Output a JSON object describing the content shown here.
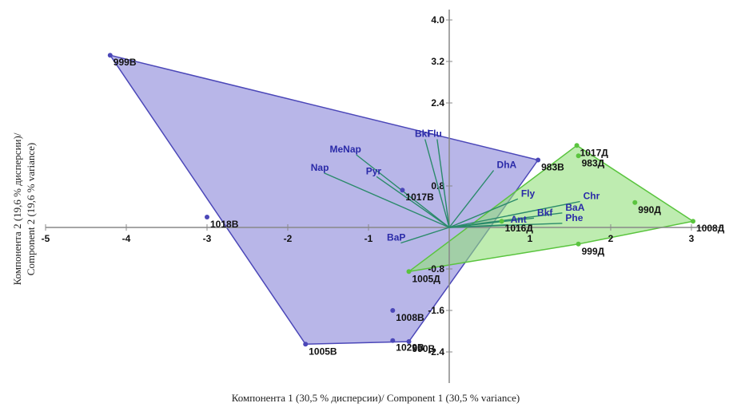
{
  "chart_data": {
    "type": "scatter",
    "title": "",
    "xlabel": "Компонента 1 (30,5 % дисперсии)/ Component 1 (30,5 % variance)",
    "ylabel_line1": "Компонента 2 (19,6 % дисперсии)/",
    "ylabel_line2": "Component 2 (19,6 % variance)",
    "xlim": [
      -5,
      3.4
    ],
    "ylim": [
      -3.0,
      4.2
    ],
    "x_ticks": [
      -5,
      -4,
      -3,
      -2,
      -1,
      1,
      2,
      3
    ],
    "y_ticks": [
      4.0,
      3.2,
      2.4,
      0.8,
      -0.8,
      -1.6,
      -2.4
    ],
    "grid": false,
    "colors": {
      "group_b": "#4b47b8",
      "group_b_fill": "#7d7ad6",
      "group_d": "#5ac43e",
      "group_d_fill": "#93df7c",
      "loading_line": "#2a8a6a",
      "axis": "#888888"
    },
    "series": [
      {
        "name": "",
        "group": "b",
        "points": [
          {
            "label": "999В",
            "x": -4.2,
            "y": 3.32
          },
          {
            "label": "1018В",
            "x": -3.0,
            "y": 0.2
          },
          {
            "label": "1005В",
            "x": -1.78,
            "y": -2.25
          },
          {
            "label": "1029В",
            "x": -0.7,
            "y": -2.18
          },
          {
            "label": "990В",
            "x": -0.5,
            "y": -2.2
          },
          {
            "label": "1008В",
            "x": -0.7,
            "y": -1.6
          },
          {
            "label": "1017В",
            "x": -0.58,
            "y": 0.72
          },
          {
            "label": "983В",
            "x": 1.1,
            "y": 1.3
          }
        ],
        "hull": [
          "999В",
          "983В",
          "990В",
          "1005В"
        ]
      },
      {
        "name": "",
        "group": "d",
        "points": [
          {
            "label": "1017Д",
            "x": 1.58,
            "y": 1.58
          },
          {
            "label": "983Д",
            "x": 1.6,
            "y": 1.38
          },
          {
            "label": "990Д",
            "x": 2.3,
            "y": 0.48
          },
          {
            "label": "1008Д",
            "x": 3.02,
            "y": 0.12
          },
          {
            "label": "999Д",
            "x": 1.6,
            "y": -0.32
          },
          {
            "label": "1005Д",
            "x": -0.5,
            "y": -0.85
          },
          {
            "label": "1016Д",
            "x": 0.65,
            "y": 0.12
          }
        ],
        "hull": [
          "1017Д",
          "1008Д",
          "999Д",
          "1005Д"
        ]
      }
    ],
    "loadings": [
      {
        "label": "Bkl",
        "x": -0.3,
        "y": 1.7
      },
      {
        "label": "Flu",
        "x": -0.15,
        "y": 1.7
      },
      {
        "label": "MeNap",
        "x": -1.15,
        "y": 1.4
      },
      {
        "label": "Pyr",
        "x": -0.9,
        "y": 0.98
      },
      {
        "label": "Nap",
        "x": -1.55,
        "y": 1.05
      },
      {
        "label": "DhA",
        "x": 0.55,
        "y": 1.1
      },
      {
        "label": "Fly",
        "x": 0.85,
        "y": 0.55
      },
      {
        "label": "Chr",
        "x": 1.62,
        "y": 0.5
      },
      {
        "label": "BaA",
        "x": 1.4,
        "y": 0.28
      },
      {
        "label": "Phe",
        "x": 1.4,
        "y": 0.08
      },
      {
        "label": "Bkf",
        "x": 1.05,
        "y": 0.18
      },
      {
        "label": "Ant",
        "x": 0.72,
        "y": 0.05
      },
      {
        "label": "BaP",
        "x": -0.6,
        "y": -0.3
      }
    ]
  }
}
